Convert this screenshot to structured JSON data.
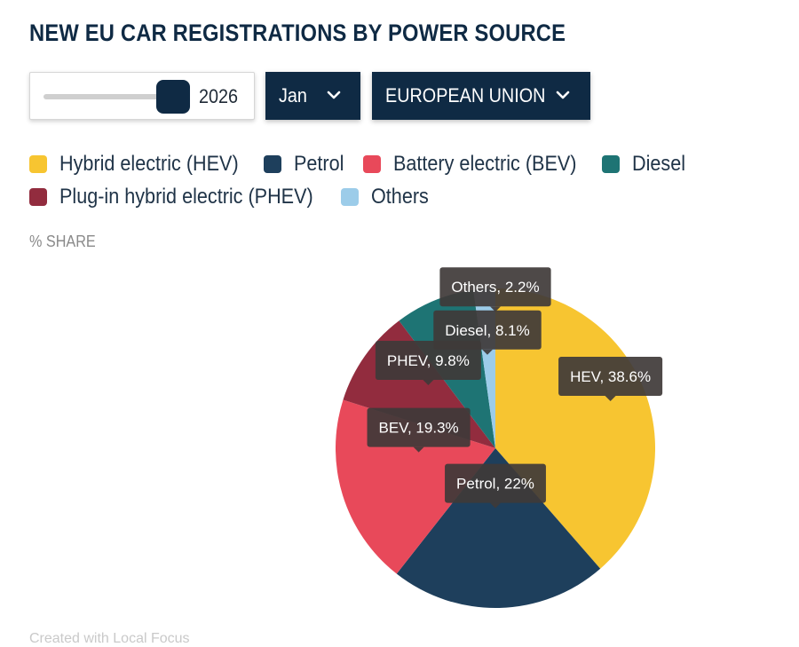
{
  "title": "NEW EU CAR REGISTRATIONS BY POWER SOURCE",
  "controls": {
    "year": "2026",
    "year_progress": 1.0,
    "month": "Jan",
    "region": "EUROPEAN UNION"
  },
  "legend": [
    {
      "label": "Hybrid electric (HEV)",
      "color": "#f7c531"
    },
    {
      "label": "Petrol",
      "color": "#1e3f5c"
    },
    {
      "label": "Battery electric (BEV)",
      "color": "#e8495a"
    },
    {
      "label": "Diesel",
      "color": "#1e7474"
    },
    {
      "label": "Plug-in hybrid electric (PHEV)",
      "color": "#922c3e"
    },
    {
      "label": "Others",
      "color": "#9ccce9"
    }
  ],
  "axis_note": "% SHARE",
  "credit": "Created with Local Focus",
  "chart_data": {
    "type": "pie",
    "title": "NEW EU CAR REGISTRATIONS BY POWER SOURCE",
    "unit": "% share",
    "start": "12 o'clock, clockwise",
    "slices": [
      {
        "name": "HEV",
        "value": 38.6,
        "color": "#f7c531",
        "label": "HEV, 38.6%"
      },
      {
        "name": "Petrol",
        "value": 22,
        "color": "#1e3f5c",
        "label": "Petrol, 22%"
      },
      {
        "name": "BEV",
        "value": 19.3,
        "color": "#e8495a",
        "label": "BEV, 19.3%"
      },
      {
        "name": "PHEV",
        "value": 9.8,
        "color": "#922c3e",
        "label": "PHEV, 9.8%"
      },
      {
        "name": "Diesel",
        "value": 8.1,
        "color": "#1e7474",
        "label": "Diesel, 8.1%"
      },
      {
        "name": "Others",
        "value": 2.2,
        "color": "#9ccce9",
        "label": "Others, 2.2%"
      }
    ]
  }
}
